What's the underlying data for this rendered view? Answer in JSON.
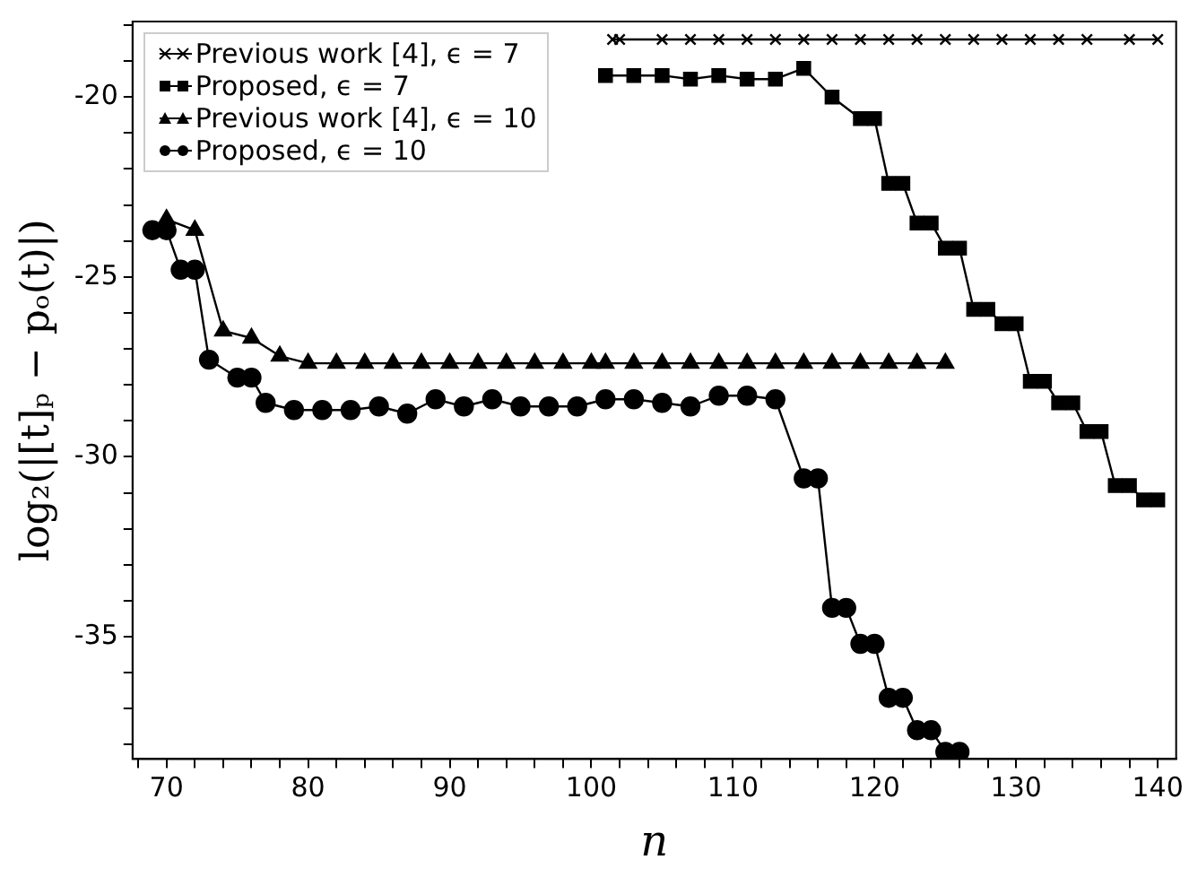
{
  "chart_data": {
    "type": "line",
    "xlabel": "n",
    "ylabel": "log₂(|[t]ₚ − pₒ(t)|)",
    "xlim": [
      67.6,
      141.3
    ],
    "ylim": [
      -38.4,
      -17.9
    ],
    "xticks": [
      {
        "value": 68,
        "label": null
      },
      70,
      {
        "value": 72,
        "label": null
      },
      {
        "value": 74,
        "label": null
      },
      {
        "value": 76,
        "label": null
      },
      {
        "value": 78,
        "label": null
      },
      80,
      {
        "value": 82,
        "label": null
      },
      {
        "value": 84,
        "label": null
      },
      {
        "value": 86,
        "label": null
      },
      {
        "value": 88,
        "label": null
      },
      90,
      {
        "value": 92,
        "label": null
      },
      {
        "value": 94,
        "label": null
      },
      {
        "value": 96,
        "label": null
      },
      {
        "value": 98,
        "label": null
      },
      100,
      {
        "value": 102,
        "label": null
      },
      {
        "value": 104,
        "label": null
      },
      {
        "value": 106,
        "label": null
      },
      {
        "value": 108,
        "label": null
      },
      110,
      {
        "value": 112,
        "label": null
      },
      {
        "value": 114,
        "label": null
      },
      {
        "value": 116,
        "label": null
      },
      {
        "value": 118,
        "label": null
      },
      120,
      {
        "value": 122,
        "label": null
      },
      {
        "value": 124,
        "label": null
      },
      {
        "value": 126,
        "label": null
      },
      {
        "value": 128,
        "label": null
      },
      130,
      {
        "value": 132,
        "label": null
      },
      {
        "value": 134,
        "label": null
      },
      {
        "value": 136,
        "label": null
      },
      {
        "value": 138,
        "label": null
      },
      140
    ],
    "yticks": [
      {
        "value": -38,
        "label": null
      },
      {
        "value": -37,
        "label": null
      },
      {
        "value": -36,
        "label": null
      },
      -35,
      {
        "value": -34,
        "label": null
      },
      {
        "value": -33,
        "label": null
      },
      {
        "value": -32,
        "label": null
      },
      {
        "value": -31,
        "label": null
      },
      -30,
      {
        "value": -29,
        "label": null
      },
      {
        "value": -28,
        "label": null
      },
      {
        "value": -27,
        "label": null
      },
      {
        "value": -26,
        "label": null
      },
      -25,
      {
        "value": -24,
        "label": null
      },
      {
        "value": -23,
        "label": null
      },
      {
        "value": -22,
        "label": null
      },
      {
        "value": -21,
        "label": null
      },
      -20,
      {
        "value": -19,
        "label": null
      },
      {
        "value": -18,
        "label": null
      }
    ],
    "grid": false,
    "legend": "top left",
    "line_style": "solid",
    "series": [
      {
        "name": "Previous work [4], ϵ = 7",
        "color": "#000000",
        "marker": "cross",
        "x": [
          101.5,
          102,
          105,
          107,
          109,
          111,
          113,
          115,
          117,
          119,
          121,
          123,
          125,
          127,
          129,
          131,
          133,
          135,
          138,
          140
        ],
        "values": [
          -18.4,
          -18.4,
          -18.4,
          -18.4,
          -18.4,
          -18.4,
          -18.4,
          -18.4,
          -18.4,
          -18.4,
          -18.4,
          -18.4,
          -18.4,
          -18.4,
          -18.4,
          -18.4,
          -18.4,
          -18.4,
          -18.4,
          -18.4
        ]
      },
      {
        "name": "Proposed, ϵ = 7",
        "color": "#000000",
        "marker": "square",
        "x": [
          101,
          103,
          105,
          107,
          109,
          111,
          113,
          115,
          117,
          119,
          120,
          121,
          122,
          123,
          124,
          125,
          126,
          127,
          128,
          129,
          130,
          131,
          132,
          133,
          134,
          135,
          136,
          137,
          138,
          139,
          140
        ],
        "values": [
          -19.4,
          -19.4,
          -19.4,
          -19.5,
          -19.4,
          -19.5,
          -19.5,
          -19.2,
          -20.0,
          -20.6,
          -20.6,
          -22.4,
          -22.4,
          -23.5,
          -23.5,
          -24.2,
          -24.2,
          -25.9,
          -25.9,
          -26.3,
          -26.3,
          -27.9,
          -27.9,
          -28.5,
          -28.5,
          -29.3,
          -29.3,
          -30.8,
          -30.8,
          -31.2,
          -31.2
        ]
      },
      {
        "name": "Previous work [4], ϵ = 10",
        "color": "#000000",
        "marker": "triangle",
        "x": [
          70,
          72,
          74,
          76,
          78,
          80,
          82,
          84,
          86,
          88,
          90,
          92,
          94,
          96,
          98,
          100,
          101,
          103,
          105,
          107,
          109,
          111,
          113,
          115,
          117,
          119,
          121,
          123,
          125
        ],
        "values": [
          -23.4,
          -23.7,
          -26.5,
          -26.7,
          -27.2,
          -27.4,
          -27.4,
          -27.4,
          -27.4,
          -27.4,
          -27.4,
          -27.4,
          -27.4,
          -27.4,
          -27.4,
          -27.4,
          -27.4,
          -27.4,
          -27.4,
          -27.4,
          -27.4,
          -27.4,
          -27.4,
          -27.4,
          -27.4,
          -27.4,
          -27.4,
          -27.4,
          -27.4
        ]
      },
      {
        "name": "Proposed, ϵ = 10",
        "color": "#000000",
        "marker": "circle",
        "x": [
          69,
          70,
          71,
          72,
          73,
          75,
          76,
          77,
          79,
          81,
          83,
          85,
          87,
          89,
          91,
          93,
          95,
          97,
          99,
          101,
          103,
          105,
          107,
          109,
          111,
          113,
          115,
          116,
          117,
          118,
          119,
          120,
          121,
          122,
          123,
          124,
          125,
          126
        ],
        "values": [
          -23.7,
          -23.7,
          -24.8,
          -24.8,
          -27.3,
          -27.8,
          -27.8,
          -28.5,
          -28.7,
          -28.7,
          -28.7,
          -28.6,
          -28.8,
          -28.4,
          -28.6,
          -28.4,
          -28.6,
          -28.6,
          -28.6,
          -28.4,
          -28.4,
          -28.5,
          -28.6,
          -28.3,
          -28.3,
          -28.4,
          -30.6,
          -30.6,
          -34.2,
          -34.2,
          -35.2,
          -35.2,
          -36.7,
          -36.7,
          -37.6,
          -37.6,
          -38.2,
          -38.2
        ]
      }
    ]
  }
}
